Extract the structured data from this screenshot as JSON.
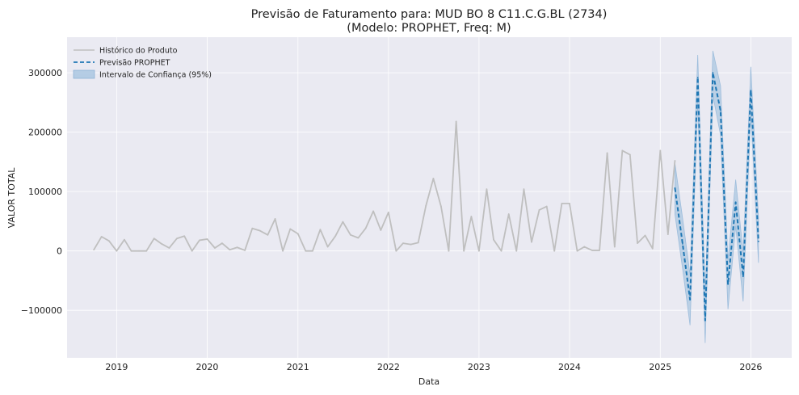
{
  "chart_data": {
    "type": "line",
    "title": "Previsão de Faturamento para: MUD BO 8 C11.C.G.BL (2734)",
    "subtitle": "(Modelo: PROPHET, Freq: M)",
    "xlabel": "Data",
    "ylabel": "VALOR TOTAL",
    "xlim": [
      "2018-06-15",
      "2026-06-15"
    ],
    "ylim": [
      -180000,
      360000
    ],
    "x_ticks": [
      "2019",
      "2020",
      "2021",
      "2022",
      "2023",
      "2024",
      "2025",
      "2026"
    ],
    "y_ticks": [
      -100000,
      0,
      100000,
      200000,
      300000
    ],
    "y_tick_labels": [
      "−100000",
      "0",
      "100000",
      "200000",
      "300000"
    ],
    "grid": true,
    "legend_position": "top-left",
    "legend": [
      {
        "key": "history",
        "label": "Histórico do Produto"
      },
      {
        "key": "forecast",
        "label": "Previsão PROPHET"
      },
      {
        "key": "interval",
        "label": "Intervalo de Confiança (95%)"
      }
    ],
    "colors": {
      "background": "#eaeaf2",
      "grid": "#ffffff",
      "history": "#bfbfbf",
      "forecast": "#1f77b4",
      "interval": "#a6c4e0"
    },
    "history": {
      "name": "Histórico do Produto",
      "dates": [
        "2018-10",
        "2018-11",
        "2018-12",
        "2019-01",
        "2019-02",
        "2019-03",
        "2019-04",
        "2019-05",
        "2019-06",
        "2019-07",
        "2019-08",
        "2019-09",
        "2019-10",
        "2019-11",
        "2019-12",
        "2020-01",
        "2020-02",
        "2020-03",
        "2020-04",
        "2020-05",
        "2020-06",
        "2020-07",
        "2020-08",
        "2020-09",
        "2020-10",
        "2020-11",
        "2020-12",
        "2021-01",
        "2021-02",
        "2021-03",
        "2021-04",
        "2021-05",
        "2021-06",
        "2021-07",
        "2021-08",
        "2021-09",
        "2021-10",
        "2021-11",
        "2021-12",
        "2022-01",
        "2022-02",
        "2022-03",
        "2022-04",
        "2022-05",
        "2022-06",
        "2022-07",
        "2022-08",
        "2022-09",
        "2022-10",
        "2022-11",
        "2022-12",
        "2023-01",
        "2023-02",
        "2023-03",
        "2023-04",
        "2023-05",
        "2023-06",
        "2023-07",
        "2023-08",
        "2023-09",
        "2023-10",
        "2023-11",
        "2023-12",
        "2024-01",
        "2024-02",
        "2024-03",
        "2024-04",
        "2024-05",
        "2024-06",
        "2024-07",
        "2024-08",
        "2024-09",
        "2024-10",
        "2024-11",
        "2024-12",
        "2025-01",
        "2025-02",
        "2025-03"
      ],
      "values": [
        2000,
        24000,
        17000,
        0,
        19000,
        0,
        0,
        0,
        21000,
        12000,
        5000,
        21000,
        25000,
        0,
        18000,
        20000,
        5000,
        13000,
        2000,
        6000,
        1000,
        38000,
        34000,
        27000,
        54000,
        0,
        37000,
        29000,
        0,
        0,
        36000,
        7000,
        25000,
        49000,
        27000,
        22000,
        38000,
        67000,
        35000,
        65000,
        0,
        13000,
        11000,
        14000,
        76000,
        122000,
        75000,
        0,
        218000,
        0,
        58000,
        0,
        104000,
        19000,
        0,
        62000,
        0,
        104000,
        15000,
        69000,
        75000,
        0,
        80000,
        80000,
        0,
        7000,
        1000,
        1000,
        165000,
        7000,
        169000,
        162000,
        13000,
        26000,
        4000,
        169000,
        28000,
        152000
      ]
    },
    "forecast": {
      "name": "Previsão PROPHET",
      "dates": [
        "2025-03",
        "2025-04",
        "2025-05",
        "2025-06",
        "2025-07",
        "2025-08",
        "2025-09",
        "2025-10",
        "2025-11",
        "2025-12",
        "2026-01",
        "2026-02"
      ],
      "values": [
        106000,
        12000,
        -82000,
        292000,
        -117000,
        300000,
        236000,
        -56000,
        82000,
        -43000,
        270000,
        16000
      ],
      "lower": [
        62000,
        -30000,
        -125000,
        250000,
        -155000,
        262000,
        195000,
        -98000,
        42000,
        -85000,
        230000,
        -20000
      ],
      "upper": [
        148000,
        55000,
        -40000,
        330000,
        -78000,
        337000,
        278000,
        -15000,
        120000,
        -3000,
        310000,
        56000
      ]
    }
  }
}
